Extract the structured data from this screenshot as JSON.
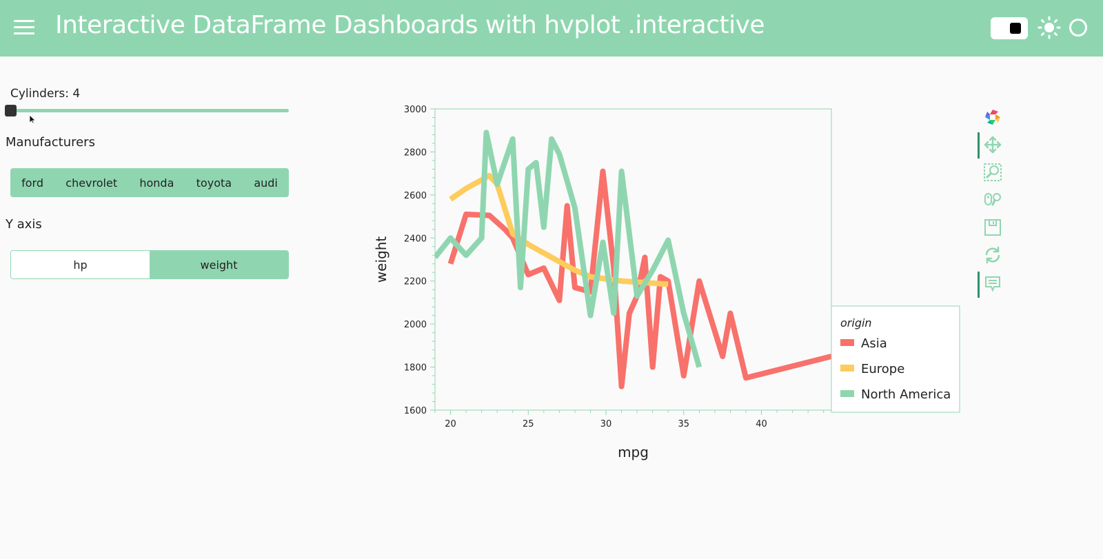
{
  "header": {
    "title": "Interactive DataFrame Dashboards with hvplot .interactive",
    "menu_icon": "hamburger-menu-icon",
    "theme_toggle_icon": "theme-toggle-icon",
    "sun_icon": "sun-icon",
    "status_icon": "busy-indicator-circle-icon",
    "accent_color": "#8fd6b0"
  },
  "sidebar": {
    "slider": {
      "label": "Cylinders: 4",
      "value": 4
    },
    "manufacturers": {
      "label": "Manufacturers",
      "options": [
        "ford",
        "chevrolet",
        "honda",
        "toyota",
        "audi"
      ]
    },
    "y_axis": {
      "label": "Y axis",
      "options": [
        "hp",
        "weight"
      ],
      "selected": "weight"
    }
  },
  "toolbar": {
    "tools": [
      "bokeh-logo-icon",
      "pan-icon",
      "box-zoom-icon",
      "wheel-zoom-icon",
      "save-icon",
      "reset-icon",
      "hover-icon"
    ]
  },
  "chart_data": {
    "type": "line",
    "title": "",
    "xlabel": "mpg",
    "ylabel": "weight",
    "xlim": [
      19,
      44.5
    ],
    "ylim": [
      1600,
      3000
    ],
    "xticks": [
      20,
      25,
      30,
      35,
      40
    ],
    "yticks": [
      1600,
      1800,
      2000,
      2200,
      2400,
      2600,
      2800,
      3000
    ],
    "grid": false,
    "legend": {
      "title": "origin",
      "position": "right"
    },
    "series": [
      {
        "name": "Asia",
        "color": "#f8716b",
        "x": [
          20,
          21,
          22.5,
          23.5,
          24,
          25,
          26,
          27,
          27.5,
          28,
          29,
          29.8,
          30.5,
          31,
          31.5,
          32,
          32.5,
          33,
          33.5,
          34,
          35,
          36,
          37.5,
          38,
          39,
          44.5
        ],
        "y": [
          2280,
          2510,
          2505,
          2440,
          2400,
          2230,
          2260,
          2110,
          2550,
          2170,
          2150,
          2710,
          2260,
          1710,
          2050,
          2130,
          2310,
          1800,
          2220,
          2200,
          1760,
          2200,
          1850,
          2050,
          1750,
          1850
        ]
      },
      {
        "name": "Europe",
        "color": "#fdcc5c",
        "x": [
          20,
          21,
          22.5,
          23,
          24,
          25,
          26,
          27,
          28,
          29,
          30,
          31,
          32,
          33,
          34
        ],
        "y": [
          2580,
          2630,
          2690,
          2650,
          2420,
          2370,
          2330,
          2290,
          2250,
          2220,
          2210,
          2200,
          2195,
          2190,
          2185
        ]
      },
      {
        "name": "North America",
        "color": "#8fd6b0",
        "x": [
          19,
          20,
          21,
          22,
          22.3,
          23,
          24,
          24.5,
          25,
          25.5,
          26,
          26.5,
          27,
          28,
          29,
          29.8,
          30.5,
          31,
          32,
          33,
          34,
          35,
          36
        ],
        "y": [
          2310,
          2400,
          2320,
          2400,
          2890,
          2650,
          2860,
          2170,
          2720,
          2750,
          2450,
          2860,
          2790,
          2540,
          2040,
          2380,
          2050,
          2710,
          2130,
          2250,
          2390,
          2050,
          1800
        ]
      }
    ]
  }
}
